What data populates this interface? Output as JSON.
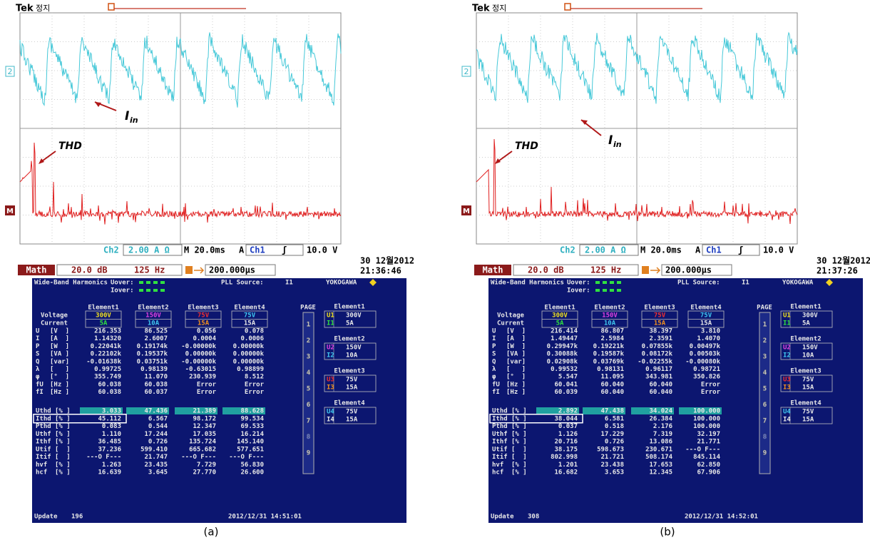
{
  "panels": [
    {
      "caption": "(a)",
      "scope": {
        "brand": "Tek",
        "status": "정지",
        "ch2_marker": "2",
        "math_marker": "M",
        "annotation_current": {
          "base": "I",
          "sub": "in"
        },
        "annotation_thd": "THD",
        "ch2": "Ch2",
        "ch2_scale": "2.00 A Ω",
        "timebase": "M 20.0ms",
        "trigger_mode": "A",
        "trigger_source": "Ch1",
        "trigger_slope": "ʃ",
        "trigger_level": "10.0 V",
        "math": "Math",
        "math_scale": "20.0 dB",
        "math_freq": "125 Hz",
        "position": "200.000µs",
        "date": "30 12월2012",
        "time": "21:36:46"
      },
      "analyzer": {
        "title": "Wide-Band Harmonics",
        "uover": "Uover:",
        "iover": "Iover:",
        "pll_label": "PLL Source:",
        "pll_source": "I1",
        "brand": "YOKOGAWA",
        "element_headers": [
          "Element1",
          "Element2",
          "Element3",
          "Element4"
        ],
        "voltage_label": "Voltage",
        "current_label": "Current",
        "voltage_ranges": [
          "300V",
          "150V",
          "75V",
          "75V"
        ],
        "current_ranges": [
          "5A",
          "10A",
          "15A",
          "15A"
        ],
        "rows": [
          [
            "U",
            "[V  ]",
            "216.353",
            "86.525",
            "0.056",
            "0.078"
          ],
          [
            "I",
            "[A  ]",
            "1.14320",
            "2.6007",
            "0.0004",
            "0.0006"
          ],
          [
            "P",
            "[W  ]",
            "0.22041k",
            "0.19174k",
            "-0.00000k",
            "0.00000k"
          ],
          [
            "S",
            "[VA ]",
            "0.22102k",
            "0.19537k",
            "0.00000k",
            "0.00000k"
          ],
          [
            "Q",
            "[var]",
            "-0.01638k",
            "0.03751k",
            "-0.00000k",
            "0.00000k"
          ],
          [
            "λ",
            "[   ]",
            "0.99725",
            "0.98139",
            "-0.63015",
            "0.98899"
          ],
          [
            "φ",
            "[°  ]",
            "355.749",
            "11.070",
            "230.939",
            "8.512"
          ],
          [
            "fU",
            "[Hz ]",
            "60.038",
            "60.038",
            "Error",
            "Error"
          ],
          [
            "fI",
            "[Hz ]",
            "60.038",
            "60.037",
            "Error",
            "Error"
          ],
          [
            "Uthd",
            "[% ]",
            "3.033",
            "47.436",
            "21.389",
            "88.628"
          ],
          [
            "Ithd",
            "[% ]",
            "45.112",
            "6.567",
            "98.172",
            "99.534"
          ],
          [
            "Pthd",
            "[% ]",
            "0.083",
            "0.544",
            "12.347",
            "69.533"
          ],
          [
            "Uthf",
            "[% ]",
            "1.110",
            "17.244",
            "17.035",
            "16.214"
          ],
          [
            "Ithf",
            "[% ]",
            "36.485",
            "0.726",
            "135.724",
            "145.140"
          ],
          [
            "Utif",
            "[  ]",
            "37.236",
            "599.410",
            "665.682",
            "577.651"
          ],
          [
            "Itif",
            "[  ]",
            "---O F---",
            "21.747",
            "---O F---",
            "---O F---"
          ],
          [
            "hvf",
            "[% ]",
            "1.263",
            "23.435",
            "7.729",
            "56.830"
          ],
          [
            "hcf",
            "[% ]",
            "16.639",
            "3.645",
            "27.770",
            "26.600"
          ]
        ],
        "page_label": "PAGE",
        "pages": [
          "1",
          "2",
          "3",
          "4",
          "5",
          "6",
          "7",
          "8",
          "9"
        ],
        "side_elements": [
          {
            "title": "Element1",
            "u": "U1",
            "u_range": "300V",
            "i": "I1",
            "i_range": "5A"
          },
          {
            "title": "Element2",
            "u": "U2",
            "u_range": "150V",
            "i": "I2",
            "i_range": "10A"
          },
          {
            "title": "Element3",
            "u": "U3",
            "u_range": "75V",
            "i": "I3",
            "i_range": "15A"
          },
          {
            "title": "Element4",
            "u": "U4",
            "u_range": "75V",
            "i": "I4",
            "i_range": "15A"
          }
        ],
        "update_label": "Update",
        "update_count": "196",
        "datetime": "2012/12/31 14:51:01"
      }
    },
    {
      "caption": "(b)",
      "scope": {
        "brand": "Tek",
        "status": "정지",
        "ch2_marker": "2",
        "math_marker": "M",
        "annotation_current": {
          "base": "I",
          "sub": "in"
        },
        "annotation_thd": "THD",
        "ch2": "Ch2",
        "ch2_scale": "2.00 A Ω",
        "timebase": "M 20.0ms",
        "trigger_mode": "A",
        "trigger_source": "Ch1",
        "trigger_slope": "ʃ",
        "trigger_level": "10.0 V",
        "math": "Math",
        "math_scale": "20.0 dB",
        "math_freq": "125 Hz",
        "position": "200.000µs",
        "date": "30 12월2012",
        "time": "21:37:26"
      },
      "analyzer": {
        "title": "Wide-Band Harmonics",
        "uover": "Uover:",
        "iover": "Iover:",
        "pll_label": "PLL Source:",
        "pll_source": "I1",
        "brand": "YOKOGAWA",
        "element_headers": [
          "Element1",
          "Element2",
          "Element3",
          "Element4"
        ],
        "voltage_label": "Voltage",
        "current_label": "Current",
        "voltage_ranges": [
          "300V",
          "150V",
          "75V",
          "75V"
        ],
        "current_ranges": [
          "5A",
          "10A",
          "15A",
          "15A"
        ],
        "rows": [
          [
            "U",
            "[V  ]",
            "216.414",
            "86.807",
            "38.397",
            "3.810"
          ],
          [
            "I",
            "[A  ]",
            "1.49447",
            "2.5984",
            "2.3591",
            "1.4070"
          ],
          [
            "P",
            "[W  ]",
            "0.29947k",
            "0.19221k",
            "0.07855k",
            "0.00497k"
          ],
          [
            "S",
            "[VA ]",
            "0.30088k",
            "0.19587k",
            "0.08172k",
            "0.00503k"
          ],
          [
            "Q",
            "[var]",
            "0.02908k",
            "0.03769k",
            "-0.02255k",
            "-0.00080k"
          ],
          [
            "λ",
            "[   ]",
            "0.99532",
            "0.98131",
            "0.96117",
            "0.98721"
          ],
          [
            "φ",
            "[°  ]",
            "5.547",
            "11.095",
            "343.981",
            "350.826"
          ],
          [
            "fU",
            "[Hz ]",
            "60.041",
            "60.040",
            "60.040",
            "Error"
          ],
          [
            "fI",
            "[Hz ]",
            "60.039",
            "60.040",
            "60.040",
            "Error"
          ],
          [
            "Uthd",
            "[% ]",
            "2.892",
            "47.438",
            "34.024",
            "100.000"
          ],
          [
            "Ithd",
            "[% ]",
            "38.044",
            "6.581",
            "26.384",
            "100.000"
          ],
          [
            "Pthd",
            "[% ]",
            "0.037",
            "0.518",
            "2.176",
            "100.000"
          ],
          [
            "Uthf",
            "[% ]",
            "1.126",
            "17.229",
            "7.319",
            "32.197"
          ],
          [
            "Ithf",
            "[% ]",
            "20.716",
            "0.726",
            "13.086",
            "21.771"
          ],
          [
            "Utif",
            "[  ]",
            "38.175",
            "598.673",
            "230.671",
            "---O F---"
          ],
          [
            "Itif",
            "[  ]",
            "802.998",
            "21.721",
            "508.174",
            "845.114"
          ],
          [
            "hvf",
            "[% ]",
            "1.201",
            "23.438",
            "17.653",
            "62.850"
          ],
          [
            "hcf",
            "[% ]",
            "16.682",
            "3.653",
            "12.345",
            "67.906"
          ]
        ],
        "page_label": "PAGE",
        "pages": [
          "1",
          "2",
          "3",
          "4",
          "5",
          "6",
          "7",
          "8",
          "9"
        ],
        "side_elements": [
          {
            "title": "Element1",
            "u": "U1",
            "u_range": "300V",
            "i": "I1",
            "i_range": "5A"
          },
          {
            "title": "Element2",
            "u": "U2",
            "u_range": "150V",
            "i": "I2",
            "i_range": "10A"
          },
          {
            "title": "Element3",
            "u": "U3",
            "u_range": "75V",
            "i": "I3",
            "i_range": "15A"
          },
          {
            "title": "Element4",
            "u": "U4",
            "u_range": "75V",
            "i": "I4",
            "i_range": "15A"
          }
        ],
        "update_label": "Update",
        "update_count": "308",
        "datetime": "2012/12/31 14:52:01"
      }
    }
  ]
}
